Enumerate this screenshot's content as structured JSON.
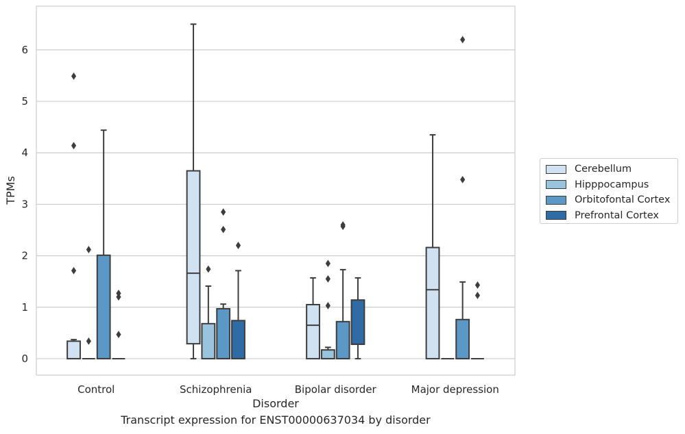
{
  "chart_data": {
    "type": "box",
    "title": "Transcript expression for ENST00000637034 by disorder",
    "xlabel": "Disorder",
    "ylabel": "TPMs",
    "ylim": [
      -0.32,
      6.85
    ],
    "yticks": [
      0,
      1,
      2,
      3,
      4,
      5,
      6
    ],
    "categories": [
      "Control",
      "Schizophrenia",
      "Bipolar disorder",
      "Major depression"
    ],
    "grid": "horizontal",
    "legend_position": "right",
    "series": [
      {
        "name": "Cerebellum",
        "color": "#d0e2f2",
        "boxes": [
          {
            "whislo": 0,
            "q1": 0,
            "med": 0,
            "q3": 0.34,
            "whishi": 0.37,
            "fliers": [
              1.71,
              4.14,
              5.49
            ]
          },
          {
            "whislo": 0,
            "q1": 0.29,
            "med": 1.66,
            "q3": 3.65,
            "whishi": 6.5,
            "fliers": []
          },
          {
            "whislo": 0,
            "q1": 0,
            "med": 0.65,
            "q3": 1.05,
            "whishi": 1.57,
            "fliers": []
          },
          {
            "whislo": 0,
            "q1": 0,
            "med": 1.34,
            "q3": 2.16,
            "whishi": 4.35,
            "fliers": []
          }
        ]
      },
      {
        "name": "Hipppocampus",
        "color": "#9ac3de",
        "boxes": [
          {
            "whislo": 0,
            "q1": 0,
            "med": 0,
            "q3": 0,
            "whishi": 0,
            "fliers": [
              0.34,
              2.12
            ]
          },
          {
            "whislo": 0,
            "q1": 0,
            "med": 0,
            "q3": 0.68,
            "whishi": 1.41,
            "fliers": [
              1.74
            ]
          },
          {
            "whislo": 0,
            "q1": 0,
            "med": 0,
            "q3": 0.17,
            "whishi": 0.22,
            "fliers": [
              1.03,
              1.55,
              1.85
            ]
          },
          {
            "whislo": 0,
            "q1": 0,
            "med": 0,
            "q3": 0,
            "whishi": 0,
            "fliers": []
          }
        ]
      },
      {
        "name": "Orbitofontal Cortex",
        "color": "#5b98c5",
        "boxes": [
          {
            "whislo": 0,
            "q1": 0,
            "med": 0,
            "q3": 2.01,
            "whishi": 4.44,
            "fliers": []
          },
          {
            "whislo": 0,
            "q1": 0,
            "med": 0,
            "q3": 0.97,
            "whishi": 1.06,
            "fliers": [
              2.51,
              2.85
            ]
          },
          {
            "whislo": 0,
            "q1": 0,
            "med": 0,
            "q3": 0.72,
            "whishi": 1.73,
            "fliers": [
              2.57,
              2.6
            ]
          },
          {
            "whislo": 0,
            "q1": 0,
            "med": 0,
            "q3": 0.76,
            "whishi": 1.49,
            "fliers": [
              3.48,
              6.2
            ]
          }
        ]
      },
      {
        "name": "Prefrontal Cortex",
        "color": "#2f6ba5",
        "boxes": [
          {
            "whislo": 0,
            "q1": 0,
            "med": 0,
            "q3": 0,
            "whishi": 0,
            "fliers": [
              0.47,
              1.2,
              1.27
            ]
          },
          {
            "whislo": 0,
            "q1": 0,
            "med": 0,
            "q3": 0.74,
            "whishi": 1.71,
            "fliers": [
              2.2
            ]
          },
          {
            "whislo": 0,
            "q1": 0.28,
            "med": 0.28,
            "q3": 1.14,
            "whishi": 1.57,
            "fliers": []
          },
          {
            "whislo": 0,
            "q1": 0,
            "med": 0,
            "q3": 0,
            "whishi": 0,
            "fliers": [
              1.23,
              1.43
            ]
          }
        ]
      }
    ]
  }
}
